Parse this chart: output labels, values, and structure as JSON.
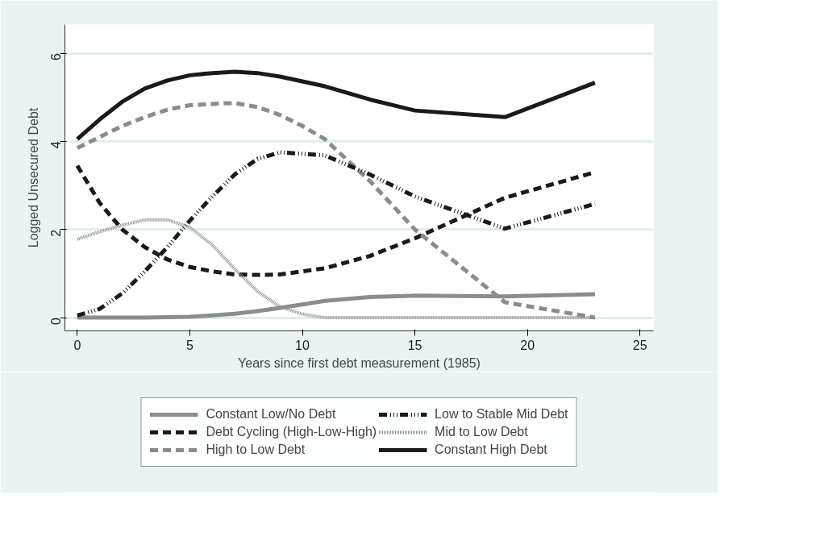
{
  "chart_data": {
    "type": "line",
    "xlabel": "Years since first debt measurement (1985)",
    "ylabel": "Logged Unsecured Debt",
    "x": [
      0,
      1,
      2,
      3,
      4,
      5,
      6,
      7,
      8,
      9,
      10,
      11,
      13,
      15,
      19,
      23
    ],
    "xlim": [
      -0.55,
      25.6
    ],
    "xticks": [
      0,
      5,
      10,
      15,
      20,
      25
    ],
    "ylim": [
      -0.3,
      6.65
    ],
    "yticks": [
      0,
      2,
      4,
      6
    ],
    "grid": "y",
    "legend": "bottom",
    "series": [
      {
        "name": "Constant Low/No Debt",
        "color": "#8c8c8c",
        "line_style": "solid",
        "values": [
          0,
          0,
          0,
          0,
          0.01,
          0.02,
          0.05,
          0.09,
          0.15,
          0.22,
          0.3,
          0.38,
          0.47,
          0.5,
          0.48,
          0.53
        ]
      },
      {
        "name": "Debt Cycling (High-Low-High)",
        "color": "#1a1a1a",
        "line_style": "dashed",
        "values": [
          3.45,
          2.6,
          2.0,
          1.6,
          1.32,
          1.15,
          1.05,
          0.98,
          0.97,
          0.98,
          1.05,
          1.12,
          1.4,
          1.8,
          2.72,
          3.3
        ]
      },
      {
        "name": "High to Low Debt",
        "color": "#8c8c8c",
        "line_style": "dashed",
        "values": [
          3.85,
          4.1,
          4.35,
          4.55,
          4.72,
          4.82,
          4.85,
          4.87,
          4.78,
          4.6,
          4.35,
          4.05,
          3.1,
          2.0,
          0.35,
          0.0
        ]
      },
      {
        "name": "Low to Stable Mid Debt",
        "color": "#1a1a1a",
        "line_style": "dashdot",
        "values": [
          0.05,
          0.2,
          0.55,
          1.05,
          1.6,
          2.2,
          2.75,
          3.25,
          3.6,
          3.75,
          3.72,
          3.68,
          3.25,
          2.75,
          2.02,
          2.58
        ]
      },
      {
        "name": "Mid to Low Debt",
        "color": "#8c8c8c",
        "line_style": "dotted",
        "values": [
          1.78,
          1.95,
          2.1,
          2.22,
          2.22,
          2.05,
          1.65,
          1.1,
          0.6,
          0.25,
          0.08,
          0,
          0,
          0,
          0,
          0
        ]
      },
      {
        "name": "Constant High Debt",
        "color": "#1a1a1a",
        "line_style": "solid",
        "values": [
          4.05,
          4.5,
          4.9,
          5.2,
          5.38,
          5.5,
          5.55,
          5.58,
          5.55,
          5.47,
          5.36,
          5.25,
          4.95,
          4.7,
          4.55,
          5.33
        ]
      }
    ]
  }
}
